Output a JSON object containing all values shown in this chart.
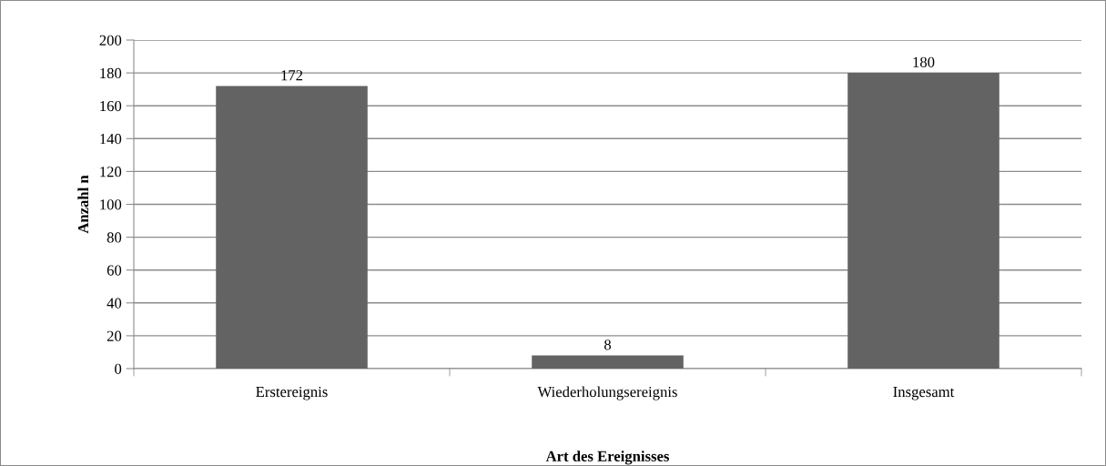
{
  "chart_data": {
    "type": "bar",
    "xlabel": "Art des Ereignisses",
    "ylabel": "Anzahl n",
    "categories": [
      "Erstereignis",
      "Wiederholungsereignis",
      "Insgesamt"
    ],
    "values": [
      172,
      8,
      180
    ],
    "color": "#636363",
    "ylim": [
      0,
      200
    ],
    "yticks": [
      0,
      20,
      40,
      60,
      80,
      100,
      120,
      140,
      160,
      180,
      200
    ],
    "grid": "y",
    "data_labels": true
  }
}
